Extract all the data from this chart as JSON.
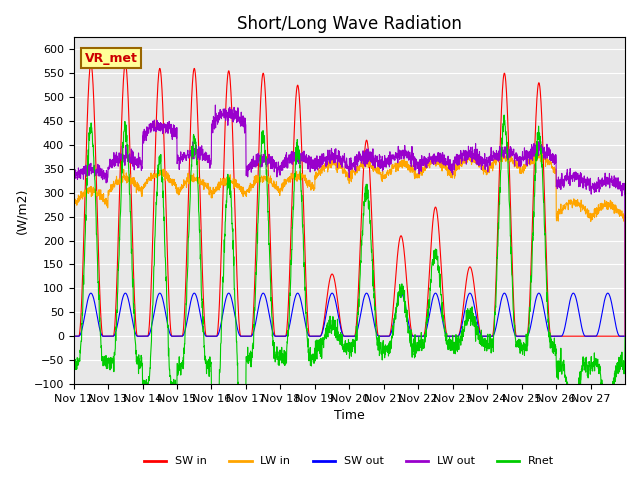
{
  "title": "Short/Long Wave Radiation",
  "xlabel": "Time",
  "ylabel": "(W/m2)",
  "ylim": [
    -100,
    625
  ],
  "yticks": [
    -100,
    -50,
    0,
    50,
    100,
    150,
    200,
    250,
    300,
    350,
    400,
    450,
    500,
    550,
    600
  ],
  "colors": {
    "SW_in": "#ff0000",
    "LW_in": "#ffa500",
    "SW_out": "#0000ff",
    "LW_out": "#9900cc",
    "Rnet": "#00cc00"
  },
  "legend_labels": [
    "SW in",
    "LW in",
    "SW out",
    "LW out",
    "Rnet"
  ],
  "bg_color": "#e8e8e8",
  "annotation_text": "VR_met",
  "annotation_color": "#cc0000",
  "annotation_bg": "#ffff99",
  "annotation_border": "#996600",
  "x_tick_labels": [
    "Nov 12",
    "Nov 13",
    "Nov 14",
    "Nov 15",
    "Nov 16",
    "Nov 17",
    "Nov 18",
    "Nov 19",
    "Nov 20",
    "Nov 21",
    "Nov 22",
    "Nov 23",
    "Nov 24",
    "Nov 25",
    "Nov 26",
    "Nov 27"
  ],
  "num_days": 16,
  "grid_color": "#ffffff",
  "title_fontsize": 12,
  "axis_fontsize": 9,
  "tick_fontsize": 8,
  "peak_scales_SW_in": [
    570,
    570,
    560,
    560,
    555,
    550,
    525,
    130,
    410,
    210,
    270,
    145,
    550,
    530,
    0,
    0
  ],
  "base_lw": [
    275,
    300,
    310,
    300,
    295,
    300,
    305,
    330,
    330,
    330,
    335,
    340,
    345,
    345,
    250,
    245
  ],
  "base_lwout": [
    330,
    355,
    420,
    365,
    445,
    350,
    355,
    355,
    355,
    360,
    355,
    360,
    365,
    370,
    315,
    305
  ]
}
